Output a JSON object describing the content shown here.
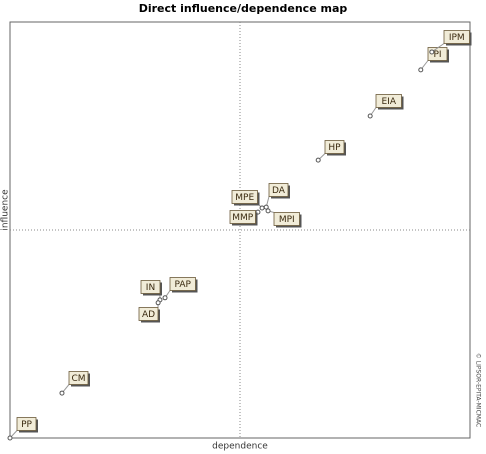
{
  "chart_data": {
    "type": "scatter",
    "title": "Direct influence/dependence map",
    "xlabel": "dependence",
    "ylabel": "influence",
    "watermark": "© LIPSOR-EPITA-MICMAC",
    "labels": [
      "PP",
      "CM",
      "IN",
      "PAP",
      "AD",
      "MPE",
      "DA",
      "MMP",
      "MPI",
      "HP",
      "EIA",
      "PI",
      "IPM"
    ],
    "x": [
      0,
      11.3,
      32.6,
      33.7,
      32.2,
      54.8,
      55.7,
      53.9,
      56.1,
      67.0,
      78.3,
      89.3,
      91.7
    ],
    "y": [
      0,
      10.8,
      33.2,
      33.7,
      32.5,
      55.3,
      55.5,
      54.3,
      54.6,
      66.8,
      77.4,
      88.5,
      92.8
    ],
    "xlim": [
      0,
      100
    ],
    "ylim": [
      0,
      100
    ],
    "color": "#555555"
  }
}
